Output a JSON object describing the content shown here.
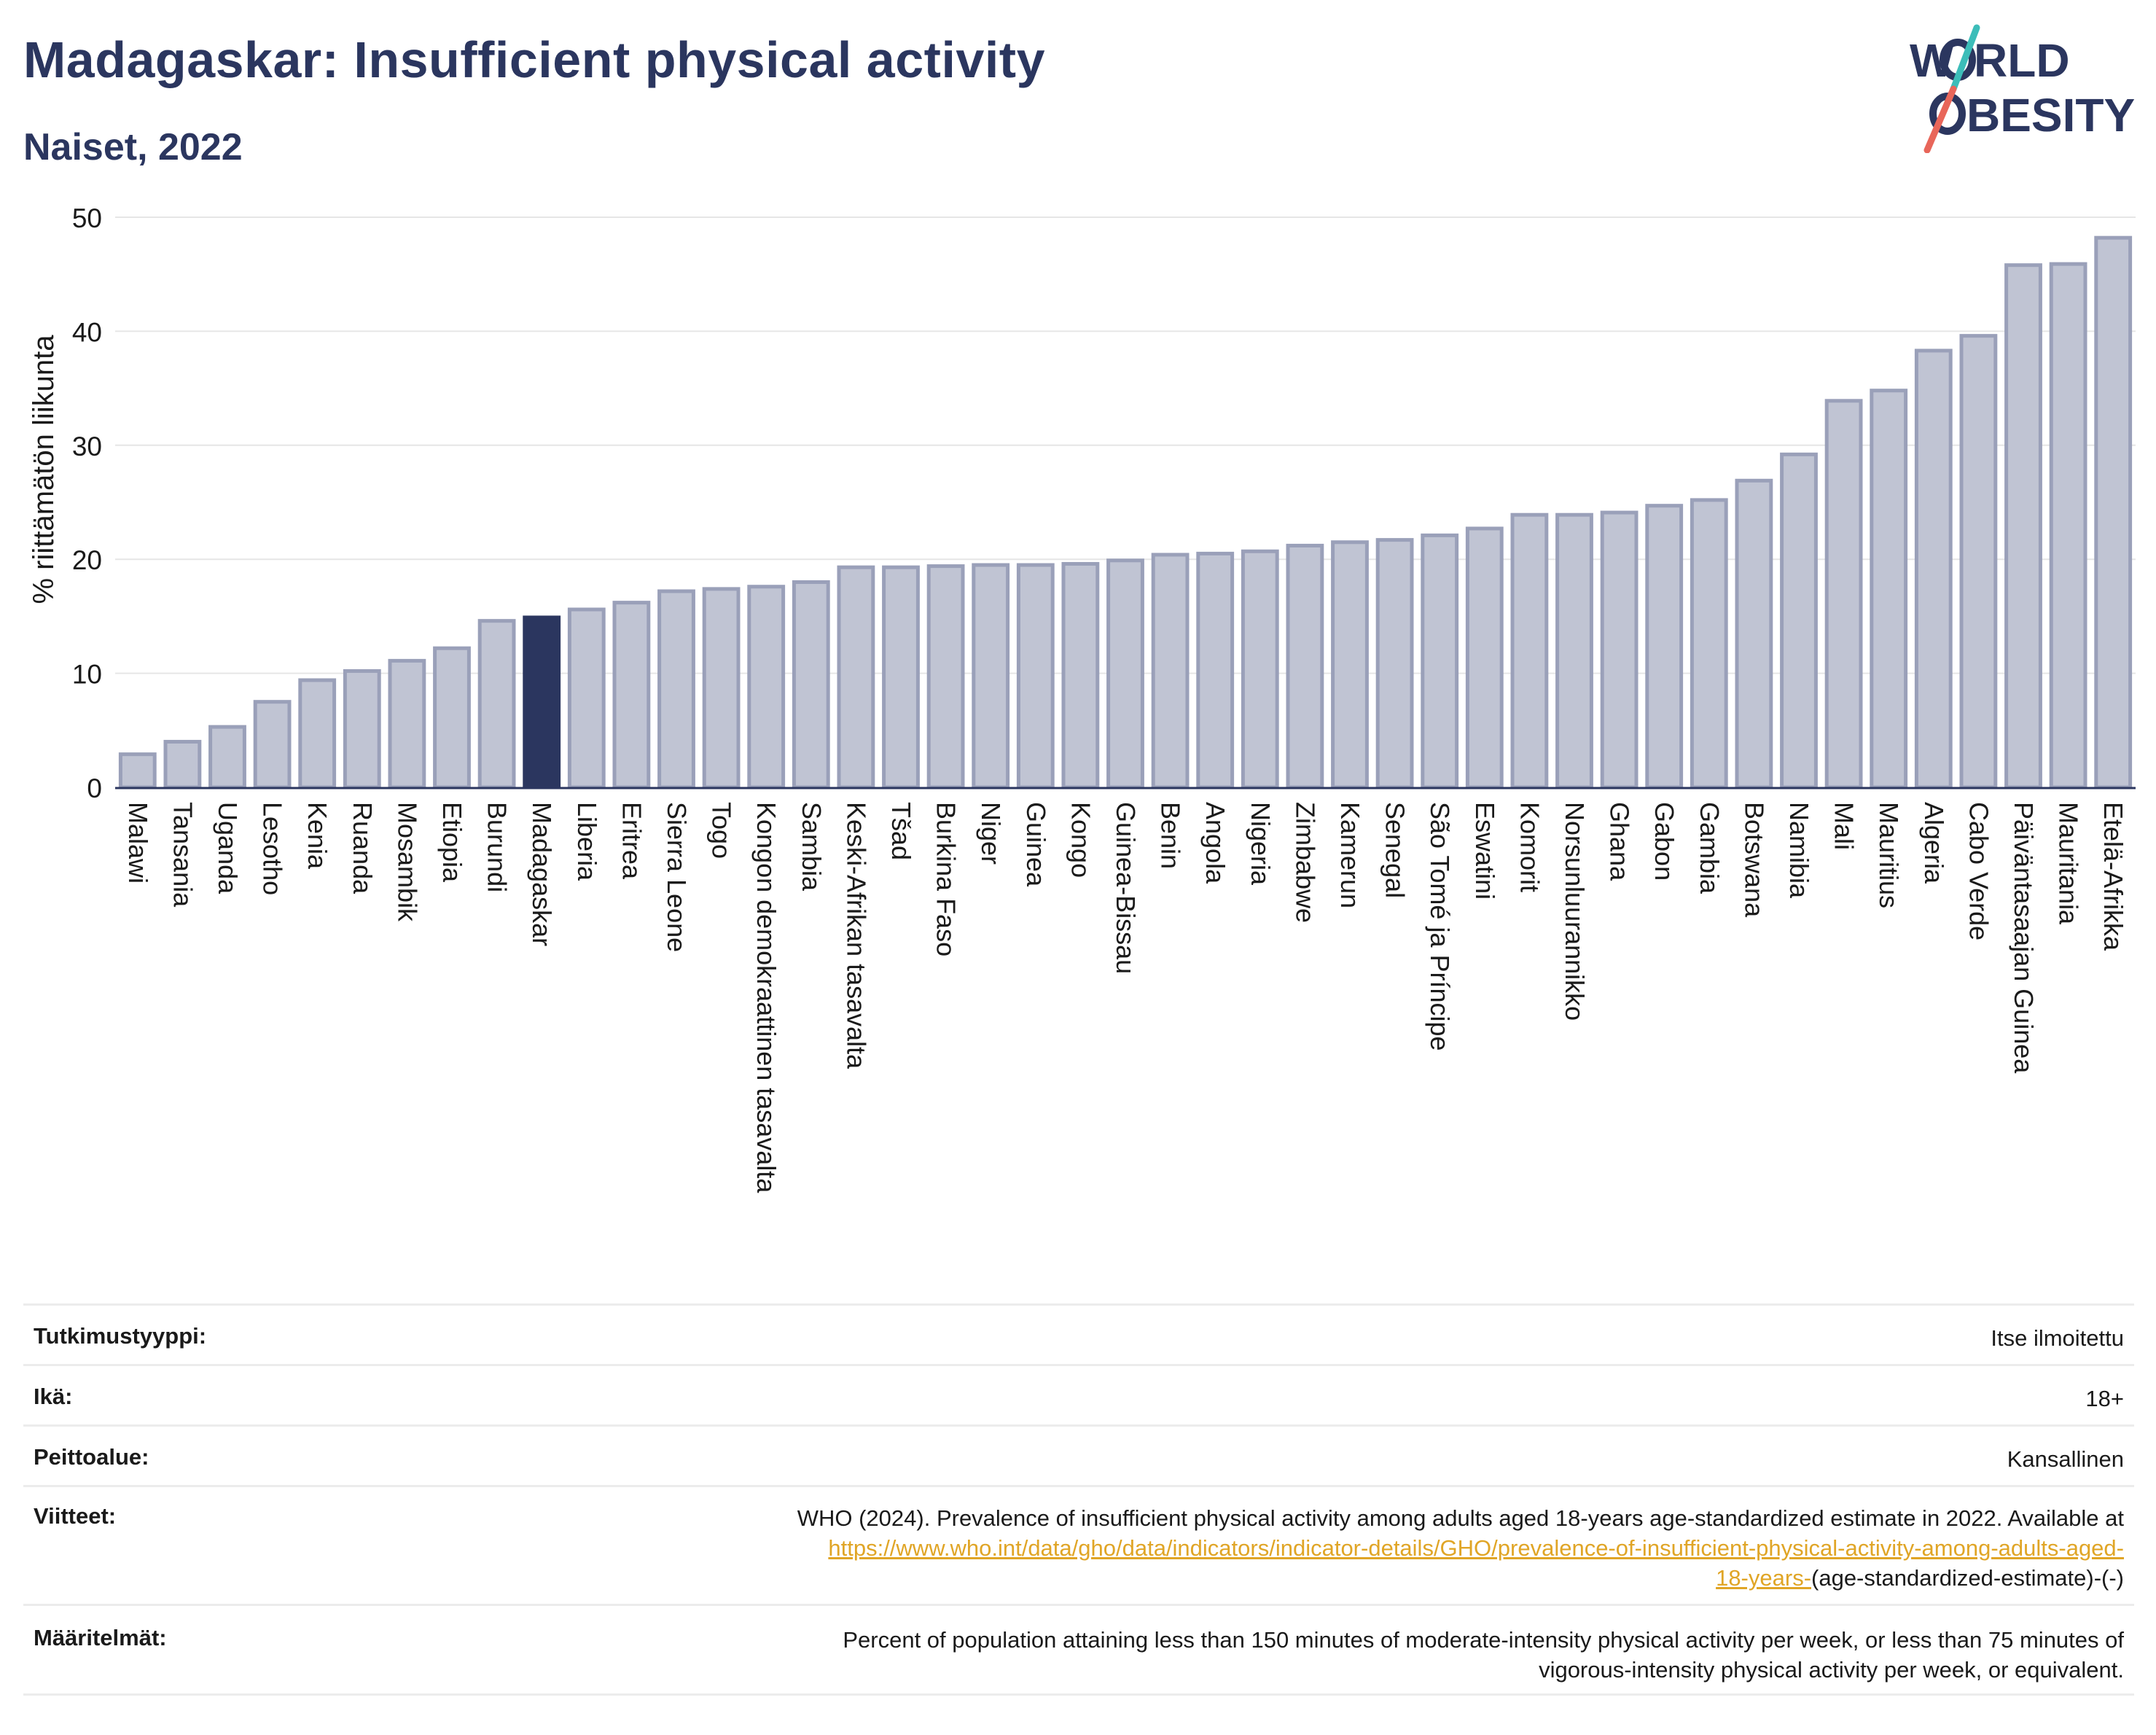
{
  "title": "Madagaskar: Insufficient physical activity",
  "subtitle": "Naiset, 2022",
  "logo": {
    "line1_a": "W",
    "line1_b": "RLD",
    "line2_b": "BESITY"
  },
  "colors": {
    "title": "#2b365f",
    "bar": "#c0c4d3",
    "bar_outline": "#9aa0b9",
    "highlight": "#2b365f",
    "logo_text": "#2b365f",
    "logo_slash_teal": "#3cbdb9",
    "logo_slash_coral": "#e8665a",
    "link": "#e0a526"
  },
  "chart_data": {
    "type": "bar",
    "title": "Madagaskar: Insufficient physical activity",
    "subtitle": "Naiset, 2022",
    "xlabel": "",
    "ylabel": "% riittämätön liikunta",
    "ylim": [
      0,
      50
    ],
    "yticks": [
      0,
      10,
      20,
      30,
      40,
      50
    ],
    "grid": true,
    "highlight": "Madagaskar",
    "categories": [
      "Malawi",
      "Tansania",
      "Uganda",
      "Lesotho",
      "Kenia",
      "Ruanda",
      "Mosambik",
      "Etiopia",
      "Burundi",
      "Madagaskar",
      "Liberia",
      "Eritrea",
      "Sierra Leone",
      "Togo",
      "Kongon demokraattinen tasavalta",
      "Sambia",
      "Keski-Afrikan tasavalta",
      "Tšad",
      "Burkina Faso",
      "Niger",
      "Guinea",
      "Kongo",
      "Guinea-Bissau",
      "Benin",
      "Angola",
      "Nigeria",
      "Zimbabwe",
      "Kamerun",
      "Senegal",
      "São Tomé ja Príncipe",
      "Eswatini",
      "Komorit",
      "Norsunluurannikko",
      "Ghana",
      "Gabon",
      "Gambia",
      "Botswana",
      "Namibia",
      "Mali",
      "Mauritius",
      "Algeria",
      "Cabo Verde",
      "Päiväntasaajan Guinea",
      "Mauritania",
      "Etelä-Afrikka"
    ],
    "values": [
      2.9,
      4.0,
      5.3,
      7.5,
      9.4,
      10.2,
      11.1,
      12.2,
      14.6,
      14.9,
      15.6,
      16.2,
      17.2,
      17.4,
      17.6,
      18.0,
      19.3,
      19.3,
      19.4,
      19.5,
      19.5,
      19.6,
      19.9,
      20.4,
      20.5,
      20.7,
      21.2,
      21.5,
      21.7,
      22.1,
      22.7,
      23.9,
      23.9,
      24.1,
      24.7,
      25.2,
      26.9,
      29.2,
      33.9,
      34.8,
      38.3,
      39.6,
      45.8,
      45.9,
      48.2
    ]
  },
  "meta": {
    "study_type_label": "Tutkimustyyppi:",
    "study_type_value": "Itse ilmoitettu",
    "age_label": "Ikä:",
    "age_value": "18+",
    "coverage_label": "Peittoalue:",
    "coverage_value": "Kansallinen",
    "references_label": "Viitteet:",
    "references_text": "WHO (2024). Prevalence of insufficient physical activity among adults aged 18-years age-standardized estimate in 2022. Available at",
    "references_link_1": "https://www.who.int/data/gho/data/indicators/indicator-details/GHO/prevalence-of-insufficient-physical-activity-among-adults-aged-",
    "references_link_2": "18-years-",
    "references_suffix": "(age-standardized-estimate)-(-)",
    "definitions_label": "Määritelmät:",
    "definitions_line_1": "Percent of population attaining less than 150 minutes of moderate-intensity physical activity per week, or less than 75 minutes of",
    "definitions_line_2": "vigorous-intensity physical activity per week, or equivalent."
  }
}
